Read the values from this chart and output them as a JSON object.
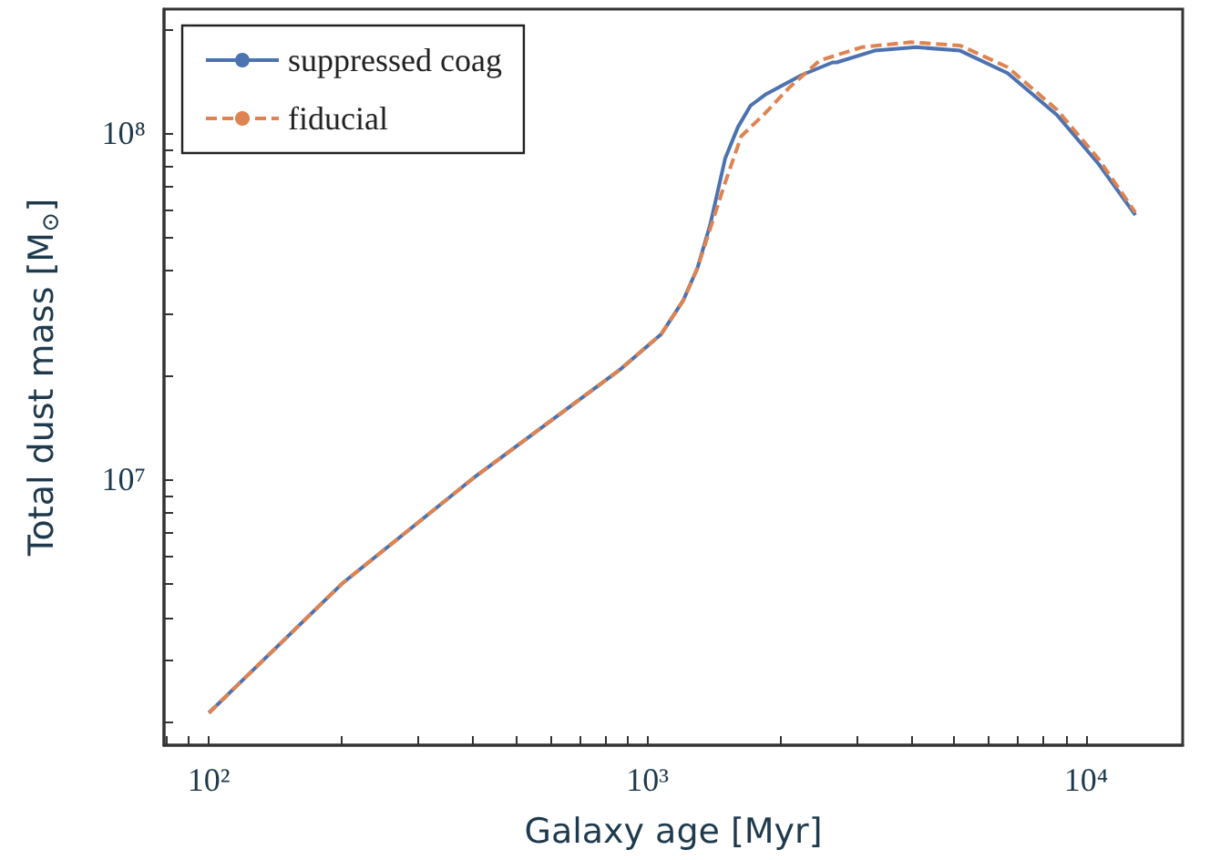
{
  "chart_data": {
    "type": "line",
    "xlabel": "Galaxy age [Myr]",
    "ylabel": "Total dust mass [M$_{⊙}$]",
    "log": "xy",
    "grid": false,
    "legend": "top left",
    "xlim": [
      79,
      16600
    ],
    "ylim": [
      1710000,
      228000000
    ],
    "xticks": [
      {
        "value": 80,
        "label": null
      },
      {
        "value": 90,
        "label": null
      },
      {
        "value": 100,
        "label": "10²"
      },
      {
        "value": 200,
        "label": null
      },
      {
        "value": 300,
        "label": null
      },
      {
        "value": 400,
        "label": null
      },
      {
        "value": 500,
        "label": null
      },
      {
        "value": 600,
        "label": null
      },
      {
        "value": 700,
        "label": null
      },
      {
        "value": 800,
        "label": null
      },
      {
        "value": 900,
        "label": null
      },
      {
        "value": 1000,
        "label": "10³"
      },
      {
        "value": 2000,
        "label": null
      },
      {
        "value": 3000,
        "label": null
      },
      {
        "value": 4000,
        "label": null
      },
      {
        "value": 5000,
        "label": null
      },
      {
        "value": 6000,
        "label": null
      },
      {
        "value": 7000,
        "label": null
      },
      {
        "value": 8000,
        "label": null
      },
      {
        "value": 9000,
        "label": null
      },
      {
        "value": 10000,
        "label": "10⁴"
      }
    ],
    "yticks": [
      {
        "value": 2000000,
        "label": null
      },
      {
        "value": 3000000,
        "label": null
      },
      {
        "value": 4000000,
        "label": null
      },
      {
        "value": 5000000,
        "label": null
      },
      {
        "value": 6000000,
        "label": null
      },
      {
        "value": 7000000,
        "label": null
      },
      {
        "value": 8000000,
        "label": null
      },
      {
        "value": 9000000,
        "label": null
      },
      {
        "value": 10000000,
        "label": "10⁷"
      },
      {
        "value": 20000000,
        "label": null
      },
      {
        "value": 30000000,
        "label": null
      },
      {
        "value": 40000000,
        "label": null
      },
      {
        "value": 50000000,
        "label": null
      },
      {
        "value": 60000000,
        "label": null
      },
      {
        "value": 70000000,
        "label": null
      },
      {
        "value": 80000000,
        "label": null
      },
      {
        "value": 90000000,
        "label": null
      },
      {
        "value": 100000000,
        "label": "10⁸"
      },
      {
        "value": 200000000,
        "label": null
      }
    ],
    "series": [
      {
        "name": "suppressed coag",
        "color": "#4c72b0",
        "line_style": "solid",
        "x": [
          100,
          201,
          401,
          863,
          1075,
          1205,
          1300,
          1390,
          1503,
          1607,
          1717,
          1853,
          2244,
          2642,
          2700,
          3296,
          4100,
          5160,
          6620,
          8570,
          10690,
          12950
        ],
        "values": [
          2120000,
          5000000,
          10100000,
          20700000,
          26300000,
          32800000,
          40800000,
          54500000,
          84400000,
          104000000,
          120000000,
          129000000,
          147000000,
          160000000,
          160000000,
          173000000,
          177000000,
          173000000,
          149000000,
          113000000,
          81300000,
          58000000
        ]
      },
      {
        "name": "fiducial",
        "color": "#dd8452",
        "line_style": "dashed",
        "x": [
          100,
          201,
          401,
          863,
          1075,
          1205,
          1300,
          1390,
          1503,
          1636,
          1853,
          2100,
          2470,
          3080,
          3980,
          5160,
          6620,
          8570,
          10690,
          12950
        ],
        "values": [
          2120000,
          5000000,
          10100000,
          20700000,
          26300000,
          32800000,
          40800000,
          53000000,
          72000000,
          98000000,
          114000000,
          135000000,
          162000000,
          177000000,
          183000000,
          179000000,
          155000000,
          117000000,
          84000000,
          59000000
        ]
      }
    ]
  }
}
